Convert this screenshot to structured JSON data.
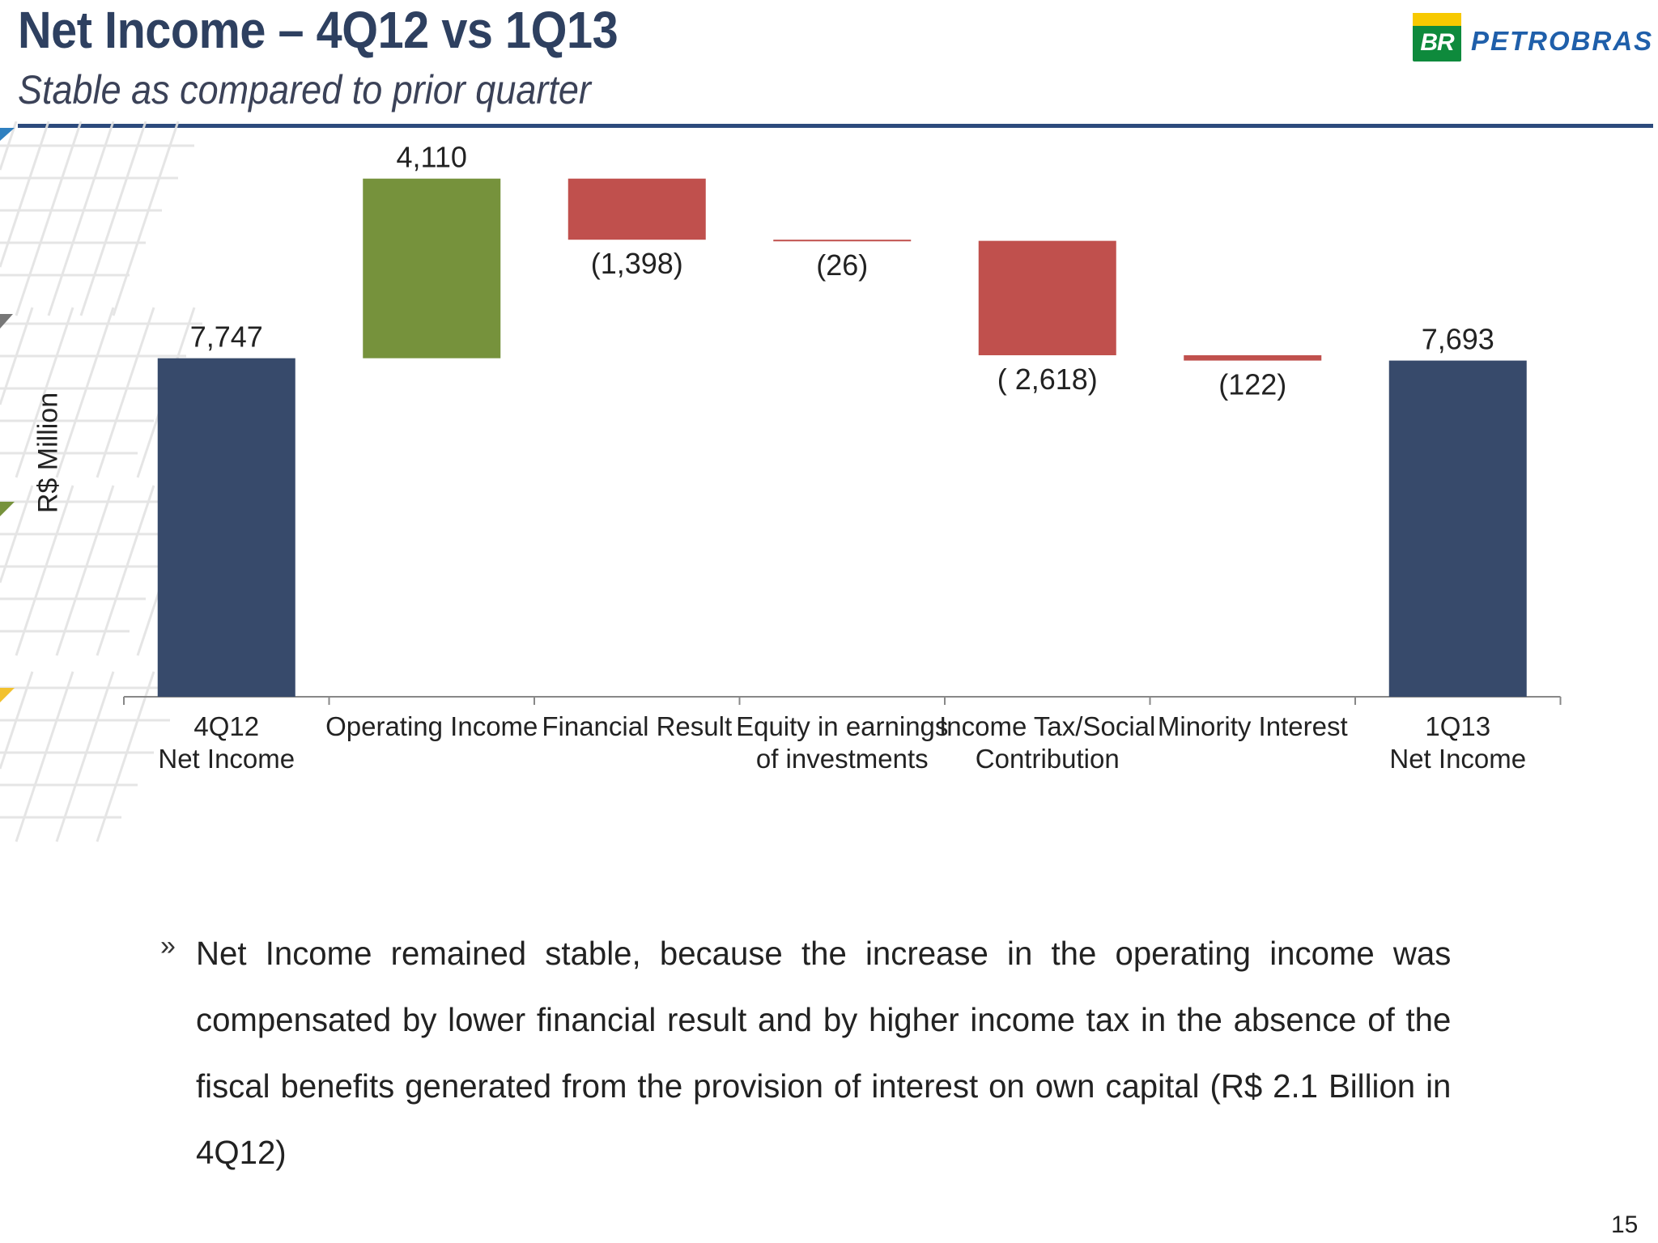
{
  "slide": {
    "title": "Net Income – 4Q12 vs 1Q13",
    "subtitle": "Stable as compared to prior quarter",
    "page_number": "15",
    "logo_badge": "BR",
    "logo_text": "PETROBRAS",
    "bullet_icon": "double-chevron-right-icon",
    "bullet_text": "Net Income remained stable, because the increase in the operating income was compensated by lower financial result and by higher income tax in the absence of the fiscal benefits generated from the provision of interest on own capital (R$ 2.1 Billion in 4Q12)"
  },
  "chart_data": {
    "type": "bar",
    "subtype": "waterfall",
    "ylabel": "R$ Million",
    "categories": [
      [
        "4Q12",
        "Net Income"
      ],
      [
        "Operating Income"
      ],
      [
        "Financial Result"
      ],
      [
        "Equity in earnings",
        "of investments"
      ],
      [
        "Income Tax/Social",
        "Contribution"
      ],
      [
        "Minority Interest"
      ],
      [
        "1Q13",
        "Net Income"
      ]
    ],
    "values": [
      7747,
      4110,
      -1398,
      -26,
      -2618,
      -122,
      7693
    ],
    "kinds": [
      "total",
      "delta",
      "delta",
      "delta",
      "delta",
      "delta",
      "total"
    ],
    "data_labels": [
      "7,747",
      "4,110",
      "(1,398)",
      "(26)",
      "( 2,618)",
      "(122)",
      "7,693"
    ],
    "ylim": [
      0,
      12000
    ],
    "grid": false,
    "colors": {
      "total": "#374a6b",
      "increase": "#76923c",
      "decrease": "#c0504d",
      "axis": "#888888"
    }
  }
}
